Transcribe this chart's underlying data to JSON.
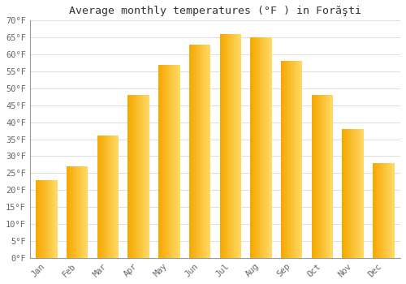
{
  "title": "Average monthly temperatures (°F ) in Forăşti",
  "months": [
    "Jan",
    "Feb",
    "Mar",
    "Apr",
    "May",
    "Jun",
    "Jul",
    "Aug",
    "Sep",
    "Oct",
    "Nov",
    "Dec"
  ],
  "values": [
    23,
    27,
    36,
    48,
    57,
    63,
    66,
    65,
    58,
    48,
    38,
    28
  ],
  "bar_color_left": "#F5A800",
  "bar_color_right": "#FFD966",
  "ylim": [
    0,
    70
  ],
  "yticks": [
    0,
    5,
    10,
    15,
    20,
    25,
    30,
    35,
    40,
    45,
    50,
    55,
    60,
    65,
    70
  ],
  "ytick_labels": [
    "0°F",
    "5°F",
    "10°F",
    "15°F",
    "20°F",
    "25°F",
    "30°F",
    "35°F",
    "40°F",
    "45°F",
    "50°F",
    "55°F",
    "60°F",
    "65°F",
    "70°F"
  ],
  "bg_color": "#ffffff",
  "grid_color": "#dddddd",
  "title_fontsize": 9.5,
  "tick_fontsize": 7.5,
  "font_family": "monospace",
  "bar_width": 0.7,
  "n_gradient_strips": 20
}
